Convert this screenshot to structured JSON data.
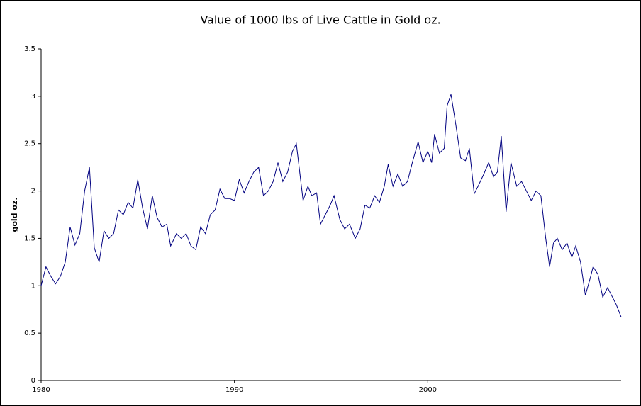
{
  "chart_data": {
    "type": "line",
    "title": "Value of 1000 lbs of Live Cattle in Gold oz.",
    "y_label": "gold oz.",
    "xlim": [
      1980,
      2010
    ],
    "xticks": [
      1980,
      1990,
      2000
    ],
    "ylim": [
      0,
      3.5
    ],
    "yticks": [
      0,
      0.5,
      1,
      1.5,
      2,
      2.5,
      3,
      3.5
    ],
    "grid": false,
    "x": [
      1980.0,
      1980.25,
      1980.5,
      1980.75,
      1981.0,
      1981.25,
      1981.5,
      1981.75,
      1982.0,
      1982.25,
      1982.5,
      1982.75,
      1983.0,
      1983.25,
      1983.5,
      1983.75,
      1984.0,
      1984.25,
      1984.5,
      1984.75,
      1985.0,
      1985.25,
      1985.5,
      1985.75,
      1986.0,
      1986.25,
      1986.5,
      1986.7,
      1987.0,
      1987.25,
      1987.5,
      1987.75,
      1988.0,
      1988.25,
      1988.5,
      1988.75,
      1989.0,
      1989.25,
      1989.5,
      1989.75,
      1990.0,
      1990.25,
      1990.5,
      1990.75,
      1991.0,
      1991.25,
      1991.5,
      1991.75,
      1992.0,
      1992.25,
      1992.5,
      1992.75,
      1993.0,
      1993.2,
      1993.55,
      1993.8,
      1994.0,
      1994.25,
      1994.45,
      1994.7,
      1994.95,
      1995.15,
      1995.45,
      1995.7,
      1995.95,
      1996.25,
      1996.5,
      1996.75,
      1997.0,
      1997.25,
      1997.5,
      1997.75,
      1997.95,
      1998.2,
      1998.45,
      1998.7,
      1998.95,
      1999.2,
      1999.5,
      1999.75,
      2000.0,
      2000.2,
      2000.35,
      2000.6,
      2000.85,
      2001.0,
      2001.2,
      2001.45,
      2001.7,
      2001.95,
      2002.15,
      2002.4,
      2002.6,
      2002.9,
      2003.15,
      2003.4,
      2003.6,
      2003.8,
      2004.05,
      2004.3,
      2004.6,
      2004.85,
      2005.1,
      2005.35,
      2005.6,
      2005.85,
      2006.1,
      2006.3,
      2006.5,
      2006.7,
      2006.95,
      2007.2,
      2007.45,
      2007.65,
      2007.9,
      2008.15,
      2008.4,
      2008.55,
      2008.8,
      2009.05,
      2009.3,
      2009.55,
      2009.75,
      2010.0
    ],
    "series": [
      {
        "color": "#000080",
        "values": [
          1.0,
          1.2,
          1.1,
          1.02,
          1.1,
          1.25,
          1.62,
          1.43,
          1.55,
          2.0,
          2.25,
          1.4,
          1.25,
          1.58,
          1.5,
          1.55,
          1.8,
          1.75,
          1.88,
          1.82,
          2.12,
          1.82,
          1.6,
          1.95,
          1.72,
          1.62,
          1.65,
          1.42,
          1.55,
          1.5,
          1.55,
          1.42,
          1.38,
          1.62,
          1.55,
          1.75,
          1.8,
          2.02,
          1.92,
          1.92,
          1.9,
          2.12,
          1.98,
          2.1,
          2.2,
          2.25,
          1.95,
          2.0,
          2.1,
          2.3,
          2.1,
          2.2,
          2.42,
          2.5,
          1.9,
          2.05,
          1.95,
          1.98,
          1.65,
          1.75,
          1.85,
          1.95,
          1.7,
          1.6,
          1.65,
          1.5,
          1.6,
          1.85,
          1.82,
          1.95,
          1.88,
          2.05,
          2.28,
          2.05,
          2.18,
          2.05,
          2.1,
          2.3,
          2.52,
          2.3,
          2.42,
          2.3,
          2.6,
          2.4,
          2.45,
          2.9,
          3.02,
          2.7,
          2.35,
          2.32,
          2.45,
          1.97,
          2.05,
          2.18,
          2.3,
          2.15,
          2.2,
          2.58,
          1.78,
          2.3,
          2.05,
          2.1,
          2.0,
          1.9,
          2.0,
          1.95,
          1.5,
          1.2,
          1.45,
          1.5,
          1.38,
          1.45,
          1.3,
          1.42,
          1.25,
          0.9,
          1.08,
          1.2,
          1.12,
          0.88,
          0.98,
          0.88,
          0.8,
          0.67
        ]
      }
    ]
  }
}
